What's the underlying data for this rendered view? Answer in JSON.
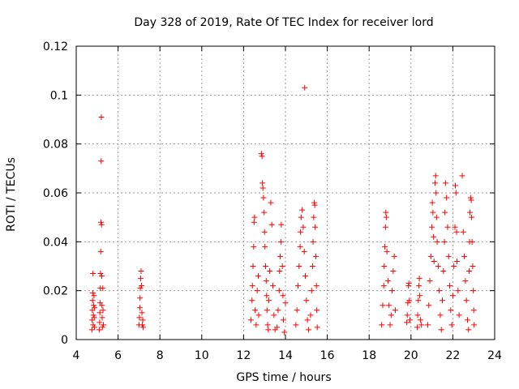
{
  "chart_data": {
    "type": "scatter",
    "title": "Day 328 of 2019, Rate Of TEC Index for receiver lord",
    "xlabel": "GPS time / hours",
    "ylabel": "ROTI / TECUs",
    "xlim": [
      4,
      24
    ],
    "ylim": [
      0,
      0.12
    ],
    "xticks": [
      "4",
      "6",
      "8",
      "10",
      "12",
      "14",
      "16",
      "18",
      "20",
      "22",
      "24"
    ],
    "yticks": [
      "0",
      "0.02",
      "0.04",
      "0.06",
      "0.08",
      "0.1",
      "0.12"
    ],
    "grid": true,
    "marker": "+",
    "color": "#ff0000",
    "series": [
      {
        "points": [
          [
            4.75,
            0.004
          ],
          [
            4.76,
            0.008
          ],
          [
            4.77,
            0.012
          ],
          [
            4.78,
            0.016
          ],
          [
            4.79,
            0.019
          ],
          [
            4.8,
            0.027
          ],
          [
            4.81,
            0.006
          ],
          [
            4.82,
            0.01
          ],
          [
            4.83,
            0.014
          ],
          [
            4.85,
            0.018
          ],
          [
            4.86,
            0.009
          ],
          [
            4.87,
            0.005
          ],
          [
            4.88,
            0.013
          ],
          [
            5.1,
            0.004
          ],
          [
            5.12,
            0.007
          ],
          [
            5.13,
            0.011
          ],
          [
            5.14,
            0.015
          ],
          [
            5.15,
            0.021
          ],
          [
            5.16,
            0.027
          ],
          [
            5.17,
            0.036
          ],
          [
            5.18,
            0.048
          ],
          [
            5.19,
            0.073
          ],
          [
            5.2,
            0.091
          ],
          [
            5.21,
            0.047
          ],
          [
            5.22,
            0.026
          ],
          [
            5.23,
            0.014
          ],
          [
            5.24,
            0.009
          ],
          [
            5.25,
            0.005
          ],
          [
            5.27,
            0.021
          ],
          [
            5.28,
            0.012
          ],
          [
            5.3,
            0.006
          ],
          [
            7.0,
            0.006
          ],
          [
            7.02,
            0.009
          ],
          [
            7.04,
            0.013
          ],
          [
            7.05,
            0.017
          ],
          [
            7.06,
            0.021
          ],
          [
            7.08,
            0.025
          ],
          [
            7.1,
            0.028
          ],
          [
            7.12,
            0.022
          ],
          [
            7.14,
            0.011
          ],
          [
            7.16,
            0.006
          ],
          [
            7.18,
            0.008
          ],
          [
            7.2,
            0.005
          ],
          [
            12.35,
            0.008
          ],
          [
            12.4,
            0.016
          ],
          [
            12.42,
            0.022
          ],
          [
            12.45,
            0.03
          ],
          [
            12.48,
            0.038
          ],
          [
            12.5,
            0.048
          ],
          [
            12.52,
            0.05
          ],
          [
            12.55,
            0.012
          ],
          [
            12.6,
            0.006
          ],
          [
            12.65,
            0.02
          ],
          [
            12.7,
            0.026
          ],
          [
            12.72,
            0.01
          ],
          [
            12.85,
            0.076
          ],
          [
            12.88,
            0.075
          ],
          [
            12.9,
            0.064
          ],
          [
            12.92,
            0.062
          ],
          [
            12.95,
            0.058
          ],
          [
            12.98,
            0.052
          ],
          [
            13.0,
            0.044
          ],
          [
            13.02,
            0.038
          ],
          [
            13.05,
            0.03
          ],
          [
            13.08,
            0.024
          ],
          [
            13.1,
            0.018
          ],
          [
            13.12,
            0.012
          ],
          [
            13.15,
            0.006
          ],
          [
            13.18,
            0.004
          ],
          [
            13.2,
            0.016
          ],
          [
            13.25,
            0.028
          ],
          [
            13.3,
            0.056
          ],
          [
            13.35,
            0.047
          ],
          [
            13.4,
            0.022
          ],
          [
            13.45,
            0.01
          ],
          [
            13.5,
            0.004
          ],
          [
            13.6,
            0.005
          ],
          [
            13.65,
            0.012
          ],
          [
            13.7,
            0.02
          ],
          [
            13.72,
            0.028
          ],
          [
            13.75,
            0.034
          ],
          [
            13.78,
            0.04
          ],
          [
            13.8,
            0.047
          ],
          [
            13.85,
            0.03
          ],
          [
            13.88,
            0.018
          ],
          [
            13.9,
            0.008
          ],
          [
            13.95,
            0.003
          ],
          [
            14.0,
            0.015
          ],
          [
            14.5,
            0.006
          ],
          [
            14.55,
            0.012
          ],
          [
            14.6,
            0.022
          ],
          [
            14.65,
            0.03
          ],
          [
            14.7,
            0.038
          ],
          [
            14.72,
            0.044
          ],
          [
            14.75,
            0.05
          ],
          [
            14.8,
            0.053
          ],
          [
            14.85,
            0.046
          ],
          [
            14.9,
            0.036
          ],
          [
            14.92,
            0.103
          ],
          [
            14.95,
            0.026
          ],
          [
            15.0,
            0.016
          ],
          [
            15.05,
            0.008
          ],
          [
            15.1,
            0.004
          ],
          [
            15.2,
            0.01
          ],
          [
            15.25,
            0.02
          ],
          [
            15.3,
            0.03
          ],
          [
            15.32,
            0.04
          ],
          [
            15.35,
            0.05
          ],
          [
            15.38,
            0.056
          ],
          [
            15.4,
            0.055
          ],
          [
            15.42,
            0.046
          ],
          [
            15.45,
            0.034
          ],
          [
            15.48,
            0.022
          ],
          [
            15.5,
            0.012
          ],
          [
            15.52,
            0.005
          ],
          [
            18.6,
            0.006
          ],
          [
            18.65,
            0.014
          ],
          [
            18.7,
            0.022
          ],
          [
            18.72,
            0.03
          ],
          [
            18.75,
            0.038
          ],
          [
            18.78,
            0.046
          ],
          [
            18.8,
            0.052
          ],
          [
            18.82,
            0.05
          ],
          [
            18.85,
            0.036
          ],
          [
            18.9,
            0.024
          ],
          [
            18.95,
            0.014
          ],
          [
            19.0,
            0.006
          ],
          [
            19.05,
            0.01
          ],
          [
            19.1,
            0.02
          ],
          [
            19.15,
            0.028
          ],
          [
            19.2,
            0.034
          ],
          [
            19.25,
            0.012
          ],
          [
            19.8,
            0.007
          ],
          [
            19.82,
            0.01
          ],
          [
            19.85,
            0.015
          ],
          [
            19.88,
            0.022
          ],
          [
            19.9,
            0.023
          ],
          [
            19.92,
            0.016
          ],
          [
            19.95,
            0.008
          ],
          [
            20.3,
            0.005
          ],
          [
            20.32,
            0.01
          ],
          [
            20.35,
            0.016
          ],
          [
            20.38,
            0.022
          ],
          [
            20.4,
            0.025
          ],
          [
            20.42,
            0.018
          ],
          [
            20.45,
            0.008
          ],
          [
            20.5,
            0.006
          ],
          [
            20.8,
            0.006
          ],
          [
            20.85,
            0.014
          ],
          [
            20.9,
            0.024
          ],
          [
            20.95,
            0.034
          ],
          [
            21.0,
            0.046
          ],
          [
            21.02,
            0.056
          ],
          [
            21.05,
            0.052
          ],
          [
            21.08,
            0.042
          ],
          [
            21.1,
            0.032
          ],
          [
            21.15,
            0.064
          ],
          [
            21.18,
            0.067
          ],
          [
            21.2,
            0.06
          ],
          [
            21.22,
            0.05
          ],
          [
            21.25,
            0.04
          ],
          [
            21.3,
            0.03
          ],
          [
            21.35,
            0.02
          ],
          [
            21.4,
            0.01
          ],
          [
            21.45,
            0.004
          ],
          [
            21.5,
            0.016
          ],
          [
            21.55,
            0.028
          ],
          [
            21.6,
            0.04
          ],
          [
            21.62,
            0.052
          ],
          [
            21.65,
            0.064
          ],
          [
            21.7,
            0.058
          ],
          [
            21.75,
            0.046
          ],
          [
            21.8,
            0.034
          ],
          [
            21.85,
            0.022
          ],
          [
            21.9,
            0.012
          ],
          [
            21.95,
            0.006
          ],
          [
            22.0,
            0.018
          ],
          [
            22.05,
            0.03
          ],
          [
            22.1,
            0.046
          ],
          [
            22.12,
            0.063
          ],
          [
            22.15,
            0.06
          ],
          [
            22.18,
            0.044
          ],
          [
            22.2,
            0.032
          ],
          [
            22.25,
            0.02
          ],
          [
            22.3,
            0.01
          ],
          [
            22.45,
            0.067
          ],
          [
            22.5,
            0.044
          ],
          [
            22.55,
            0.034
          ],
          [
            22.6,
            0.024
          ],
          [
            22.65,
            0.016
          ],
          [
            22.7,
            0.008
          ],
          [
            22.75,
            0.004
          ],
          [
            22.78,
            0.028
          ],
          [
            22.8,
            0.04
          ],
          [
            22.82,
            0.052
          ],
          [
            22.85,
            0.058
          ],
          [
            22.88,
            0.057
          ],
          [
            22.9,
            0.05
          ],
          [
            22.92,
            0.04
          ],
          [
            22.95,
            0.03
          ],
          [
            22.98,
            0.02
          ],
          [
            23.0,
            0.012
          ],
          [
            23.02,
            0.006
          ]
        ]
      }
    ]
  }
}
